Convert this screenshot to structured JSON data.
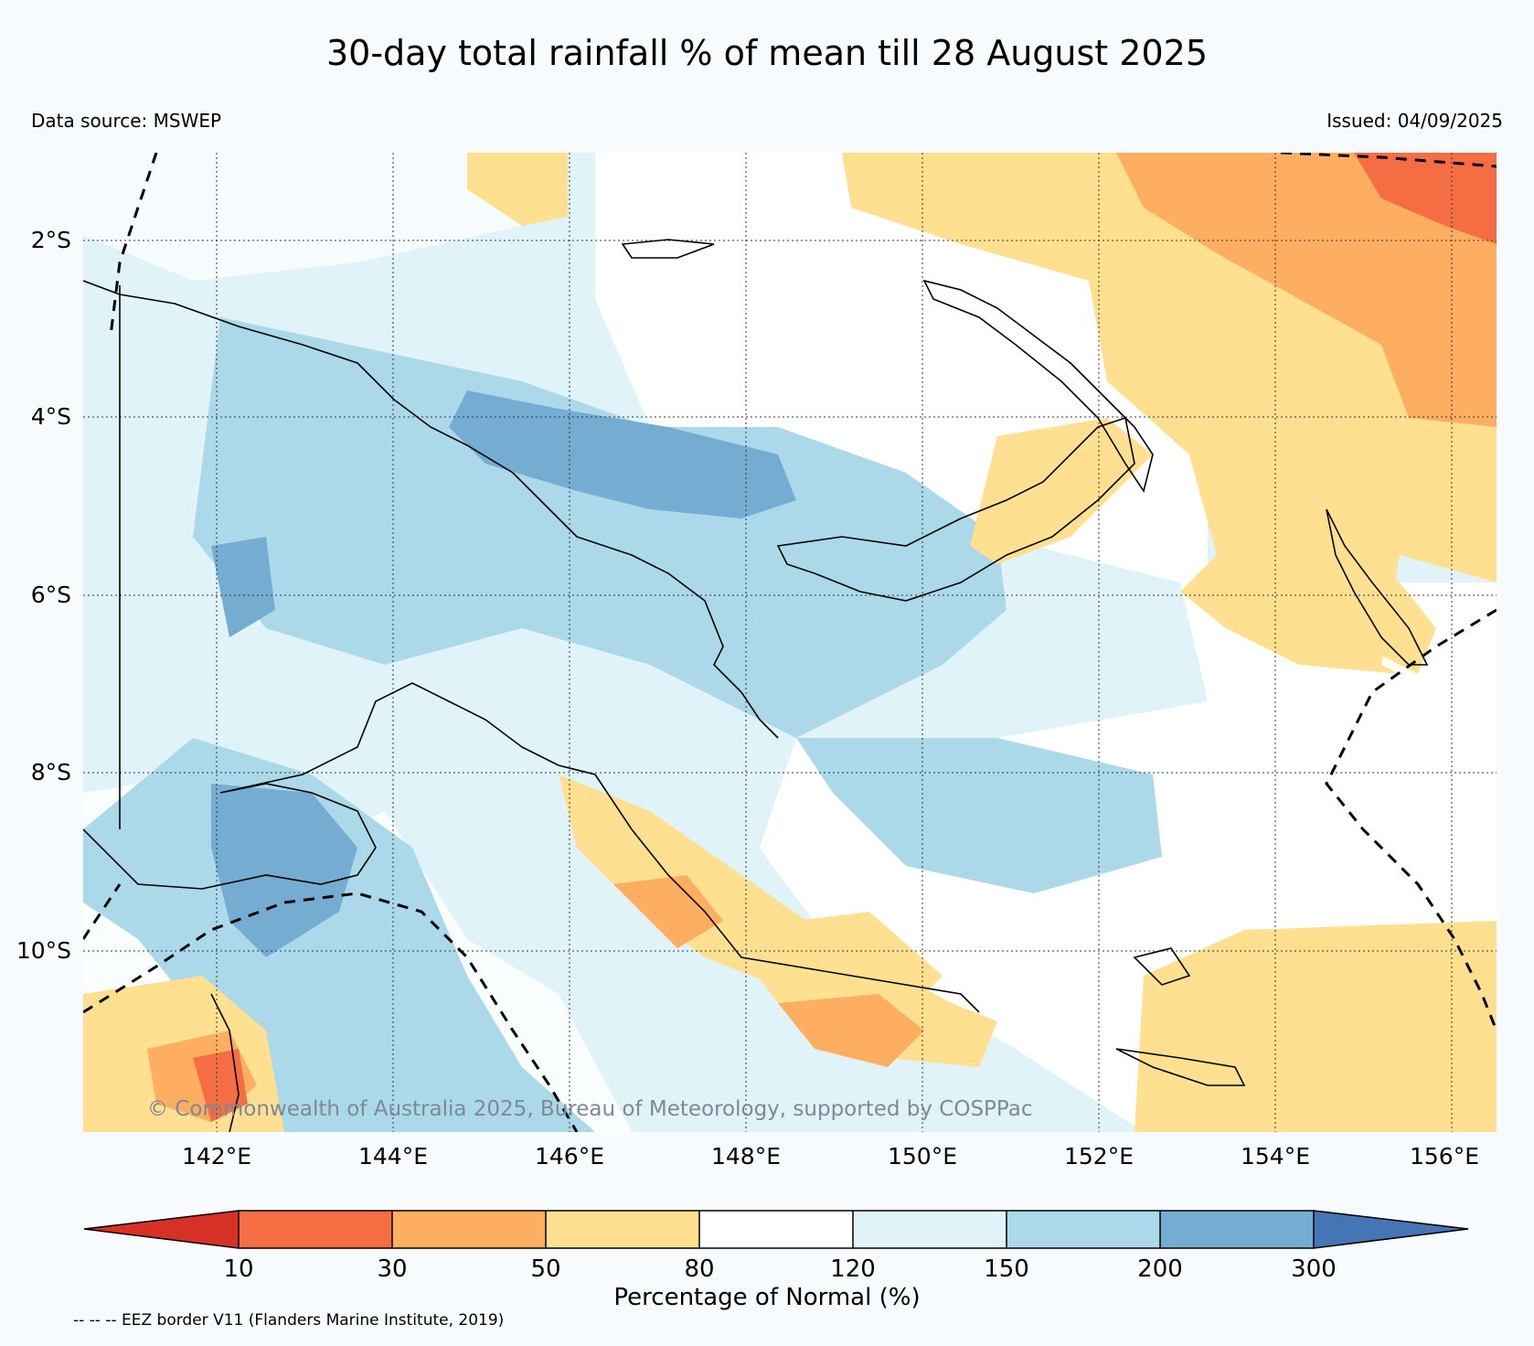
{
  "title": "30-day total rainfall % of mean till 28 August 2025",
  "data_source": "Data source: MSWEP",
  "issued": "Issued: 04/09/2025",
  "copyright": "© Commonwealth of Australia 2025, Bureau of Meteorology, supported by COSPPac",
  "lat_labels": [
    "2°S",
    "4°S",
    "6°S",
    "8°S",
    "10°S"
  ],
  "lon_labels": [
    "142°E",
    "144°E",
    "146°E",
    "148°E",
    "150°E",
    "152°E",
    "154°E",
    "156°E"
  ],
  "colorbar": {
    "ticks": [
      "10",
      "30",
      "50",
      "80",
      "120",
      "150",
      "200",
      "300"
    ],
    "label": "Percentage of Normal (%)",
    "colors": [
      "#d73027",
      "#f46d43",
      "#fdae61",
      "#fee090",
      "#ffffff",
      "#e0f3f8",
      "#abd9e9",
      "#74add1",
      "#4575b4"
    ]
  },
  "eez_note": "-- -- -- EEZ border V11 (Flanders Marine Institute, 2019)"
}
